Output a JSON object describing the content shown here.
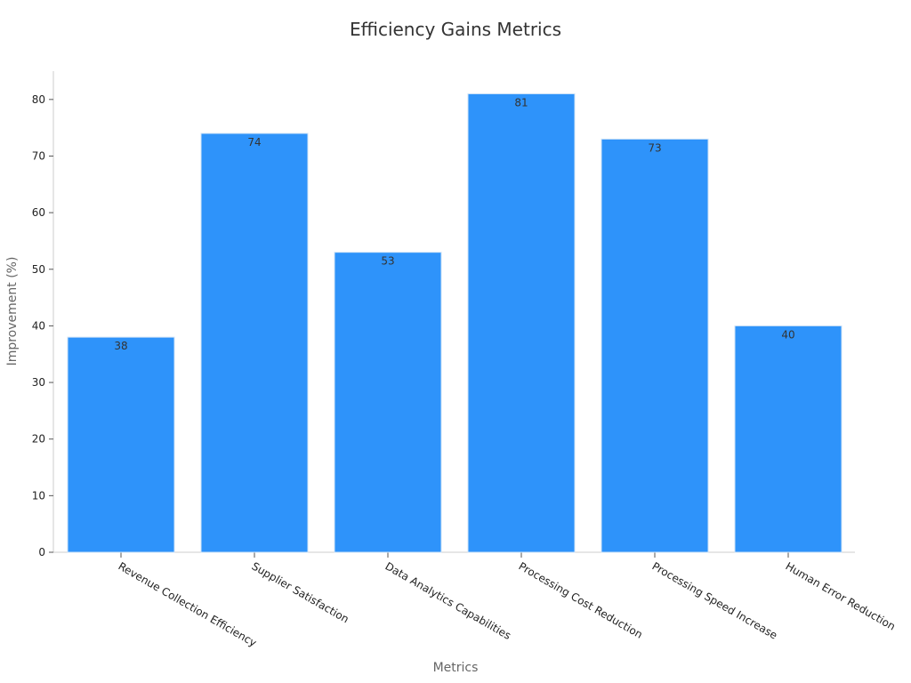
{
  "chart_data": {
    "type": "bar",
    "title": "Efficiency Gains Metrics",
    "x_label": "Metrics",
    "y_label": "Improvement (%)",
    "categories": [
      "Revenue Collection Efficiency",
      "Supplier Satisfaction",
      "Data Analytics Capabilities",
      "Processing Cost Reduction",
      "Processing Speed Increase",
      "Human Error Reduction"
    ],
    "values": [
      38,
      74,
      53,
      81,
      73,
      40
    ],
    "color": "#2e93fa",
    "ylim": [
      0,
      85
    ],
    "yticks": [
      0,
      10,
      20,
      30,
      40,
      50,
      60,
      70,
      80
    ],
    "grid": false
  }
}
